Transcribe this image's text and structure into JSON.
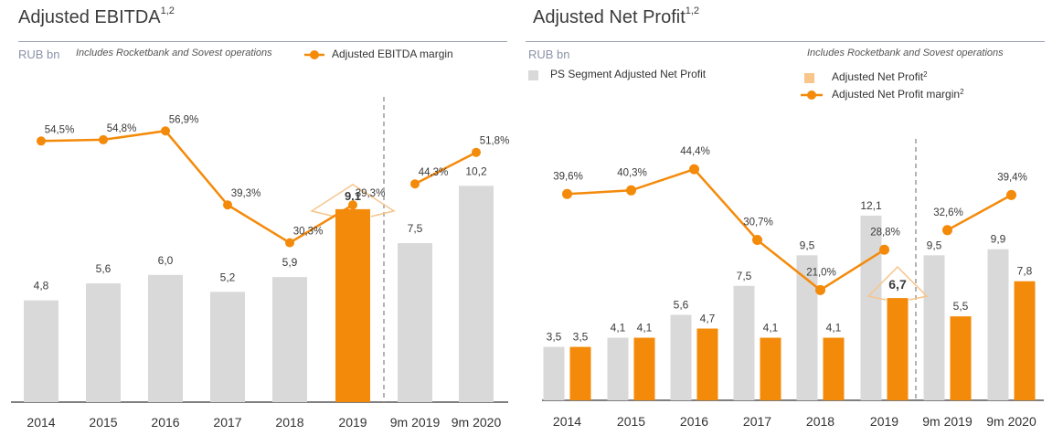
{
  "colors": {
    "bar_gray": "#d9d9d9",
    "accent": "#f48a0a",
    "accent_light": "#f8c58a",
    "text": "#3a3a3a",
    "rule": "#9aa3b5",
    "unit": "#8a93a6"
  },
  "left": {
    "title": "Adjusted EBITDA",
    "title_sup": "1,2",
    "unit": "RUB bn",
    "note": "Includes Rocketbank and Sovest operations",
    "legend_margin": "Adjusted EBITDA margin"
  },
  "right": {
    "title": "Adjusted Net Profit",
    "title_sup": "1,2",
    "unit": "RUB bn",
    "note": "Includes Rocketbank and Sovest operations",
    "legend_segment": "PS Segment Adjusted Net Profit",
    "legend_profit": "Adjusted Net Profit",
    "legend_profit_sup": "2",
    "legend_margin": "Adjusted Net Profit margin",
    "legend_margin_sup": "2"
  },
  "chart_data": [
    {
      "type": "bar",
      "title": "Adjusted EBITDA1,2",
      "ylabel": "RUB bn",
      "categories": [
        "2014",
        "2015",
        "2016",
        "2017",
        "2018",
        "2019",
        "9m 2019",
        "9m 2020"
      ],
      "values": [
        4.8,
        5.6,
        6.0,
        5.2,
        5.9,
        9.1,
        7.5,
        10.2
      ],
      "value_labels": [
        "4,8",
        "5,6",
        "6,0",
        "5,2",
        "5,9",
        "9,1",
        "7,5",
        "10,2"
      ],
      "highlight_index": 5,
      "divider_after_index": 5,
      "margin_series": {
        "name": "Adjusted EBITDA margin",
        "values": [
          54.5,
          54.8,
          56.9,
          39.3,
          30.3,
          39.3,
          44.3,
          51.8
        ],
        "labels": [
          "54,5%",
          "54,8%",
          "56,9%",
          "39,3%",
          "30,3%",
          "39,3%",
          "44,3%",
          "51,8%"
        ]
      },
      "grid": false,
      "legend": "top"
    },
    {
      "type": "bar",
      "title": "Adjusted Net Profit1,2",
      "ylabel": "RUB bn",
      "categories": [
        "2014",
        "2015",
        "2016",
        "2017",
        "2018",
        "2019",
        "9m 2019",
        "9m 2020"
      ],
      "series": [
        {
          "name": "PS Segment Adjusted Net Profit",
          "values": [
            3.5,
            4.1,
            5.6,
            7.5,
            9.5,
            12.1,
            9.5,
            9.9
          ],
          "labels": [
            "3,5",
            "4,1",
            "5,6",
            "7,5",
            "9,5",
            "12,1",
            "9,5",
            "9,9"
          ]
        },
        {
          "name": "Adjusted Net Profit2",
          "values": [
            3.5,
            4.1,
            4.7,
            4.1,
            4.1,
            6.7,
            5.5,
            7.8
          ],
          "labels": [
            "3,5",
            "4,1",
            "4,7",
            "4,1",
            "4,1",
            "6,7",
            "5,5",
            "7,8"
          ]
        }
      ],
      "highlight_index": 5,
      "divider_after_index": 5,
      "margin_series": {
        "name": "Adjusted Net Profit margin2",
        "values": [
          39.6,
          40.3,
          44.4,
          30.7,
          21.0,
          28.8,
          32.6,
          39.4
        ],
        "labels": [
          "39,6%",
          "40,3%",
          "44,4%",
          "30,7%",
          "21,0%",
          "28,8%",
          "32,6%",
          "39,4%"
        ]
      },
      "grid": false,
      "legend": "top"
    }
  ]
}
